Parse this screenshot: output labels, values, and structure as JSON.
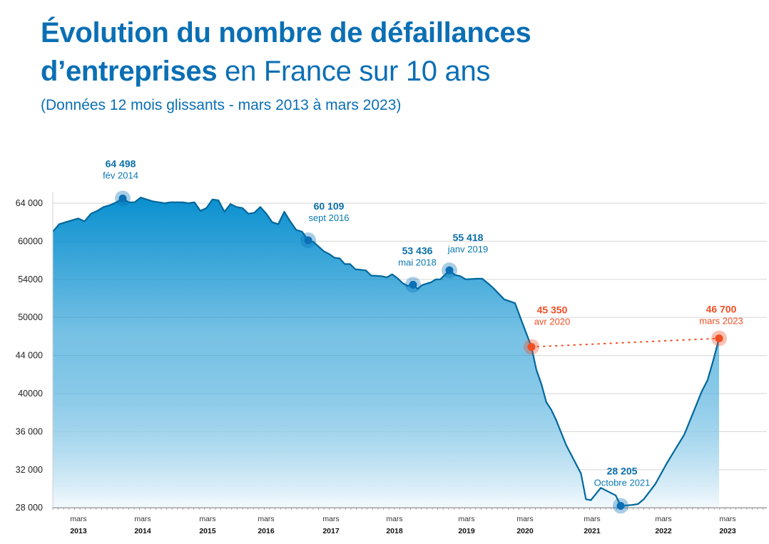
{
  "title": {
    "line1": "Évolution du nombre de défaillances",
    "line2_bold": "d’entreprises",
    "line2_rest": " en France sur 10 ans",
    "subtitle": "(Données 12 mois glissants - mars 2013 à mars 2023)"
  },
  "colors": {
    "title": "#0a6fb5",
    "line": "#00679c",
    "fill_top": "#0a90cf",
    "fill_bottom": "#f4f9fd",
    "highlight": "#f04e23",
    "marker": "#0a6fb5"
  },
  "chart_data": {
    "type": "area",
    "title": "Évolution du nombre de défaillances d’entreprises en France sur 10 ans",
    "subtitle": "(Données 12 mois glissants - mars 2013 à mars 2023)",
    "xlabel": "",
    "ylabel": "",
    "grid": true,
    "y_ticks": [
      "64 000",
      "60000",
      "54000",
      "50000",
      "44 000",
      "40000",
      "36 000",
      "32 000",
      "28 000"
    ],
    "y_tick_values": [
      64000,
      60000,
      54000,
      50000,
      44000,
      40000,
      36000,
      32000,
      28000
    ],
    "y_scale": "non-uniform (ticks evenly spaced)",
    "x_ticks": [
      {
        "month": "mars",
        "year": "2013"
      },
      {
        "month": "mars",
        "year": "2014"
      },
      {
        "month": "mars",
        "year": "2015"
      },
      {
        "month": "mars",
        "year": "2016"
      },
      {
        "month": "mars",
        "year": "2017"
      },
      {
        "month": "mars",
        "year": "2018"
      },
      {
        "month": "mars",
        "year": "2019"
      },
      {
        "month": "mars",
        "year": "2020"
      },
      {
        "month": "mars",
        "year": "2021"
      },
      {
        "month": "mars",
        "year": "2022"
      },
      {
        "month": "mars",
        "year": "2023"
      }
    ],
    "series": [
      {
        "points": [
          [
            "2013-03",
            61000
          ],
          [
            "2013-04",
            61800
          ],
          [
            "2013-05",
            62000
          ],
          [
            "2013-07",
            62400
          ],
          [
            "2013-08",
            62100
          ],
          [
            "2013-09",
            62900
          ],
          [
            "2013-10",
            63200
          ],
          [
            "2013-11",
            63600
          ],
          [
            "2013-12",
            63800
          ],
          [
            "2014-01",
            64100
          ],
          [
            "2014-02",
            64498
          ],
          [
            "2014-03",
            64100
          ],
          [
            "2014-04",
            64100
          ],
          [
            "2014-05",
            64600
          ],
          [
            "2014-06",
            64400
          ],
          [
            "2014-07",
            64200
          ],
          [
            "2014-09",
            64000
          ],
          [
            "2014-10",
            64100
          ],
          [
            "2014-11",
            64100
          ],
          [
            "2014-12",
            64100
          ],
          [
            "2015-01",
            64000
          ],
          [
            "2015-02",
            64100
          ],
          [
            "2015-03",
            63200
          ],
          [
            "2015-04",
            63500
          ],
          [
            "2015-05",
            64400
          ],
          [
            "2015-06",
            64300
          ],
          [
            "2015-07",
            63100
          ],
          [
            "2015-08",
            63900
          ],
          [
            "2015-09",
            63600
          ],
          [
            "2015-10",
            63500
          ],
          [
            "2015-11",
            62900
          ],
          [
            "2015-12",
            63000
          ],
          [
            "2016-01",
            63600
          ],
          [
            "2016-02",
            62900
          ],
          [
            "2016-03",
            62000
          ],
          [
            "2016-04",
            61800
          ],
          [
            "2016-05",
            63100
          ],
          [
            "2016-06",
            62100
          ],
          [
            "2016-07",
            61200
          ],
          [
            "2016-08",
            61000
          ],
          [
            "2016-09",
            60109
          ],
          [
            "2016-10",
            59900
          ],
          [
            "2016-12",
            58400
          ],
          [
            "2017-01",
            58000
          ],
          [
            "2017-02",
            57400
          ],
          [
            "2017-03",
            57300
          ],
          [
            "2017-04",
            56400
          ],
          [
            "2017-05",
            56400
          ],
          [
            "2017-06",
            55600
          ],
          [
            "2017-07",
            55500
          ],
          [
            "2017-08",
            55400
          ],
          [
            "2017-09",
            54600
          ],
          [
            "2017-11",
            54500
          ],
          [
            "2017-12",
            54300
          ],
          [
            "2018-01",
            54800
          ],
          [
            "2018-02",
            54200
          ],
          [
            "2018-03",
            53600
          ],
          [
            "2018-04",
            53300
          ],
          [
            "2018-05",
            53436
          ],
          [
            "2018-06",
            53000
          ],
          [
            "2018-07",
            53400
          ],
          [
            "2018-09",
            53700
          ],
          [
            "2018-10",
            54000
          ],
          [
            "2018-11",
            54000
          ],
          [
            "2019-01",
            55418
          ],
          [
            "2019-02",
            54700
          ],
          [
            "2019-03",
            54500
          ],
          [
            "2019-04",
            54000
          ],
          [
            "2019-06",
            54100
          ],
          [
            "2019-07",
            54100
          ],
          [
            "2019-08",
            53600
          ],
          [
            "2019-09",
            53100
          ],
          [
            "2019-10",
            52500
          ],
          [
            "2019-11",
            51900
          ],
          [
            "2020-01",
            51500
          ],
          [
            "2020-02",
            49900
          ],
          [
            "2020-04",
            45350
          ],
          [
            "2020-05",
            42500
          ],
          [
            "2020-06",
            41000
          ],
          [
            "2020-07",
            39100
          ],
          [
            "2020-08",
            38300
          ],
          [
            "2020-09",
            37200
          ],
          [
            "2020-11",
            34600
          ],
          [
            "2021-02",
            31600
          ],
          [
            "2021-03",
            28900
          ],
          [
            "2021-04",
            28800
          ],
          [
            "2021-06",
            30100
          ],
          [
            "2021-09",
            29300
          ],
          [
            "2021-10",
            28205
          ],
          [
            "2021-12",
            28300
          ],
          [
            "2022-01",
            28400
          ],
          [
            "2022-02",
            28900
          ],
          [
            "2022-04",
            30500
          ],
          [
            "2022-06",
            32700
          ],
          [
            "2022-09",
            35700
          ],
          [
            "2022-11",
            38700
          ],
          [
            "2022-12",
            40200
          ],
          [
            "2023-01",
            41400
          ],
          [
            "2023-02",
            43500
          ],
          [
            "2023-03",
            46700
          ]
        ]
      }
    ],
    "annotations": [
      {
        "date": "2014-02",
        "value": "64 498",
        "label": "fév 2014",
        "color": "blue"
      },
      {
        "date": "2016-09",
        "value": "60 109",
        "label": "sept 2016",
        "color": "blue"
      },
      {
        "date": "2018-05",
        "value": "53 436",
        "label": "mai 2018",
        "color": "blue"
      },
      {
        "date": "2019-01",
        "value": "55 418",
        "label": "janv 2019",
        "color": "blue"
      },
      {
        "date": "2020-04",
        "value": "45 350",
        "label": "avr 2020",
        "color": "orange"
      },
      {
        "date": "2021-10",
        "value": "28 205",
        "label": "Octobre 2021",
        "color": "blue"
      },
      {
        "date": "2023-03",
        "value": "46 700",
        "label": "mars 2023",
        "color": "orange"
      }
    ],
    "comparison_line": {
      "from": "2020-04",
      "to": "2023-03",
      "style": "dotted",
      "color": "orange"
    }
  }
}
